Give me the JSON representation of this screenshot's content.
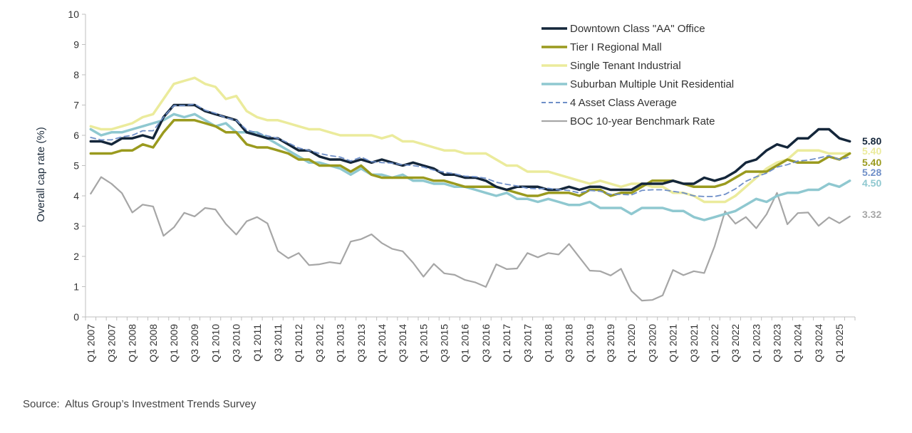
{
  "source": "Source:  Altus Group’s Investment Trends Survey",
  "chart_data": {
    "type": "line",
    "title": "",
    "xlabel": "",
    "ylabel": "Overall cap rate (%)",
    "ylim": [
      0,
      10
    ],
    "yticks": [
      0,
      1,
      2,
      3,
      4,
      5,
      6,
      7,
      8,
      9,
      10
    ],
    "x": [
      "Q1 2007",
      "Q2 2007",
      "Q3 2007",
      "Q4 2007",
      "Q1 2008",
      "Q2 2008",
      "Q3 2008",
      "Q4 2008",
      "Q1 2009",
      "Q2 2009",
      "Q3 2009",
      "Q4 2009",
      "Q1 2010",
      "Q2 2010",
      "Q3 2010",
      "Q4 2010",
      "Q1 2011",
      "Q2 2011",
      "Q3 2011",
      "Q4 2011",
      "Q1 2012",
      "Q2 2012",
      "Q3 2012",
      "Q4 2012",
      "Q1 2013",
      "Q2 2013",
      "Q3 2013",
      "Q4 2013",
      "Q1 2014",
      "Q2 2014",
      "Q3 2014",
      "Q4 2014",
      "Q1 2015",
      "Q2 2015",
      "Q3 2015",
      "Q4 2015",
      "Q1 2016",
      "Q2 2016",
      "Q3 2016",
      "Q4 2016",
      "Q1 2017",
      "Q2 2017",
      "Q3 2017",
      "Q4 2017",
      "Q1 2018",
      "Q2 2018",
      "Q3 2018",
      "Q4 2018",
      "Q1 2019",
      "Q2 2019",
      "Q3 2019",
      "Q4 2019",
      "Q1 2020",
      "Q2 2020",
      "Q3 2020",
      "Q4 2020",
      "Q1 2021",
      "Q2 2021",
      "Q3 2021",
      "Q4 2021",
      "Q1 2022",
      "Q2 2022",
      "Q3 2022",
      "Q4 2022",
      "Q1 2023",
      "Q2 2023",
      "Q3 2023",
      "Q4 2023",
      "Q1 2024",
      "Q2 2024",
      "Q3 2024",
      "Q4 2024",
      "Q1 2025",
      "Q2 2025"
    ],
    "x_tick_labels": [
      "Q1 2007",
      "Q3 2007",
      "Q1 2008",
      "Q3 2008",
      "Q1 2009",
      "Q3 2009",
      "Q1 2010",
      "Q3 2010",
      "Q1 2011",
      "Q3 2011",
      "Q1 2012",
      "Q3 2012",
      "Q1 2013",
      "Q3 2013",
      "Q1 2014",
      "Q3 2014",
      "Q1 2015",
      "Q3 2015",
      "Q1 2016",
      "Q3 2016",
      "Q1 2017",
      "Q3 2017",
      "Q1 2018",
      "Q3 2018",
      "Q1 2019",
      "Q3 2019",
      "Q1 2020",
      "Q3 2020",
      "Q1 2021",
      "Q3 2021",
      "Q1 2022",
      "Q3 2022",
      "Q1 2023",
      "Q3 2023",
      "Q1 2024",
      "Q3 2024",
      "Q1 2025"
    ],
    "grid": false,
    "legend_position": "top-right",
    "series": [
      {
        "name": "Downtown Class \"AA\" Office",
        "color": "#14263a",
        "width": 3.5,
        "dash": "",
        "end_label": "5.80",
        "values": [
          5.8,
          5.8,
          5.7,
          5.9,
          5.9,
          6.0,
          5.9,
          6.6,
          7.0,
          7.0,
          7.0,
          6.8,
          6.7,
          6.6,
          6.5,
          6.1,
          6.0,
          5.9,
          5.9,
          5.7,
          5.5,
          5.5,
          5.3,
          5.2,
          5.2,
          5.1,
          5.2,
          5.1,
          5.2,
          5.1,
          5.0,
          5.1,
          5.0,
          4.9,
          4.7,
          4.7,
          4.6,
          4.6,
          4.5,
          4.3,
          4.2,
          4.3,
          4.3,
          4.3,
          4.2,
          4.2,
          4.3,
          4.2,
          4.3,
          4.3,
          4.2,
          4.2,
          4.2,
          4.4,
          4.4,
          4.4,
          4.5,
          4.4,
          4.4,
          4.6,
          4.5,
          4.6,
          4.8,
          5.1,
          5.2,
          5.5,
          5.7,
          5.6,
          5.9,
          5.9,
          6.2,
          6.2,
          5.9,
          5.8
        ]
      },
      {
        "name": "Tier I Regional Mall",
        "color": "#9a9a1e",
        "width": 3.5,
        "dash": "",
        "end_label": "5.40",
        "values": [
          5.4,
          5.4,
          5.4,
          5.5,
          5.5,
          5.7,
          5.6,
          6.1,
          6.5,
          6.5,
          6.5,
          6.4,
          6.3,
          6.1,
          6.1,
          5.7,
          5.6,
          5.6,
          5.5,
          5.4,
          5.2,
          5.2,
          5.0,
          5.0,
          5.0,
          4.8,
          5.0,
          4.7,
          4.6,
          4.6,
          4.6,
          4.6,
          4.6,
          4.5,
          4.5,
          4.4,
          4.3,
          4.3,
          4.3,
          4.3,
          4.2,
          4.1,
          4.0,
          4.0,
          4.1,
          4.1,
          4.1,
          4.0,
          4.2,
          4.2,
          4.0,
          4.1,
          4.1,
          4.3,
          4.5,
          4.5,
          4.5,
          4.4,
          4.3,
          4.3,
          4.3,
          4.4,
          4.6,
          4.8,
          4.8,
          4.8,
          5.0,
          5.2,
          5.1,
          5.1,
          5.1,
          5.3,
          5.2,
          5.4
        ]
      },
      {
        "name": "Single Tenant Industrial",
        "color": "#ebeb9c",
        "width": 3.5,
        "dash": "",
        "end_label": "5.40",
        "values": [
          6.3,
          6.2,
          6.2,
          6.3,
          6.4,
          6.6,
          6.7,
          7.2,
          7.7,
          7.8,
          7.9,
          7.7,
          7.6,
          7.2,
          7.3,
          6.8,
          6.6,
          6.5,
          6.5,
          6.4,
          6.3,
          6.2,
          6.2,
          6.1,
          6.0,
          6.0,
          6.0,
          6.0,
          5.9,
          6.0,
          5.8,
          5.8,
          5.7,
          5.6,
          5.5,
          5.5,
          5.4,
          5.4,
          5.4,
          5.2,
          5.0,
          5.0,
          4.8,
          4.8,
          4.8,
          4.7,
          4.6,
          4.5,
          4.4,
          4.5,
          4.4,
          4.3,
          4.4,
          4.4,
          4.3,
          4.3,
          4.1,
          4.1,
          4.0,
          3.8,
          3.8,
          3.8,
          4.0,
          4.3,
          4.6,
          4.9,
          5.1,
          5.2,
          5.5,
          5.5,
          5.5,
          5.4,
          5.4,
          5.4
        ]
      },
      {
        "name": "Suburban Multiple Unit Residential",
        "color": "#8fc8d0",
        "width": 3.5,
        "dash": "",
        "end_label": "4.50",
        "values": [
          6.2,
          6.0,
          6.1,
          6.1,
          6.2,
          6.3,
          6.4,
          6.5,
          6.7,
          6.6,
          6.7,
          6.5,
          6.3,
          6.4,
          6.1,
          6.1,
          6.1,
          5.9,
          5.7,
          5.5,
          5.3,
          5.1,
          5.1,
          5.0,
          4.9,
          4.7,
          4.9,
          4.7,
          4.7,
          4.6,
          4.7,
          4.5,
          4.5,
          4.4,
          4.4,
          4.3,
          4.3,
          4.2,
          4.1,
          4.0,
          4.1,
          3.9,
          3.9,
          3.8,
          3.9,
          3.8,
          3.7,
          3.7,
          3.8,
          3.6,
          3.6,
          3.6,
          3.4,
          3.6,
          3.6,
          3.6,
          3.5,
          3.5,
          3.3,
          3.2,
          3.3,
          3.4,
          3.5,
          3.7,
          3.9,
          3.8,
          4.0,
          4.1,
          4.1,
          4.2,
          4.2,
          4.4,
          4.3,
          4.5
        ]
      },
      {
        "name": "4 Asset Class Average",
        "color": "#6f8fc8",
        "width": 1.8,
        "dash": "7,5",
        "end_label": "5.28",
        "values": [
          5.93,
          5.85,
          5.85,
          5.95,
          6.0,
          6.15,
          6.15,
          6.6,
          6.98,
          6.98,
          7.03,
          6.83,
          6.73,
          6.58,
          6.5,
          6.18,
          6.08,
          5.98,
          5.9,
          5.75,
          5.58,
          5.5,
          5.4,
          5.33,
          5.28,
          5.15,
          5.28,
          5.13,
          5.1,
          5.08,
          5.03,
          5.0,
          4.95,
          4.85,
          4.78,
          4.73,
          4.65,
          4.63,
          4.58,
          4.45,
          4.38,
          4.33,
          4.25,
          4.23,
          4.25,
          4.2,
          4.18,
          4.1,
          4.18,
          4.15,
          4.05,
          4.05,
          4.03,
          4.18,
          4.2,
          4.2,
          4.15,
          4.1,
          4.0,
          3.98,
          3.98,
          4.05,
          4.23,
          4.48,
          4.63,
          4.75,
          4.95,
          5.03,
          5.15,
          5.18,
          5.25,
          5.33,
          5.2,
          5.28
        ]
      },
      {
        "name": "BOC 10-year Benchmark Rate",
        "color": "#a6a6a6",
        "width": 2.2,
        "dash": "",
        "end_label": "3.32",
        "values": [
          4.07,
          4.62,
          4.4,
          4.09,
          3.45,
          3.71,
          3.65,
          2.68,
          2.96,
          3.44,
          3.32,
          3.6,
          3.55,
          3.07,
          2.72,
          3.16,
          3.3,
          3.09,
          2.18,
          1.94,
          2.11,
          1.71,
          1.74,
          1.81,
          1.76,
          2.49,
          2.57,
          2.73,
          2.44,
          2.25,
          2.17,
          1.79,
          1.33,
          1.75,
          1.44,
          1.39,
          1.22,
          1.14,
          0.99,
          1.74,
          1.58,
          1.6,
          2.11,
          1.97,
          2.11,
          2.06,
          2.41,
          1.97,
          1.53,
          1.51,
          1.37,
          1.59,
          0.86,
          0.54,
          0.56,
          0.71,
          1.55,
          1.38,
          1.51,
          1.45,
          2.34,
          3.49,
          3.08,
          3.3,
          2.93,
          3.39,
          4.1,
          3.06,
          3.43,
          3.45,
          3.01,
          3.29,
          3.1,
          3.32
        ]
      }
    ]
  }
}
